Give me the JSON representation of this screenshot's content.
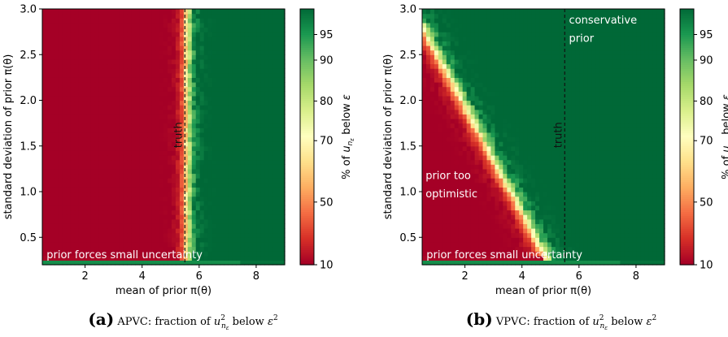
{
  "panels": [
    {
      "id": "a",
      "caption_label": "(a)",
      "caption_text": "APVC: fraction of u²_{n_ε} below ε²",
      "caption_parts": {
        "pre": "APVC: fraction of ",
        "var": "u",
        "sup": "2",
        "sub": "n",
        "subsub": "ε",
        "mid": " below ",
        "eps": "ε",
        "eps_sup": "2"
      }
    },
    {
      "id": "b",
      "caption_label": "(b)",
      "caption_text": "VPVC: fraction of u²_{n_ε} below ε²",
      "caption_parts": {
        "pre": "VPVC: fraction of ",
        "var": "u",
        "sup": "2",
        "sub": "n",
        "subsub": "ε",
        "mid": " below ",
        "eps": "ε",
        "eps_sup": "2"
      }
    }
  ],
  "chart_data": [
    {
      "type": "heatmap",
      "panel": "a",
      "xlabel": "mean of prior π(θ)",
      "ylabel": "standard deviation of prior π(θ)",
      "xlim": [
        0.5,
        9.0
      ],
      "ylim": [
        0.2,
        3.0
      ],
      "xticks": [
        2,
        4,
        6,
        8
      ],
      "yticks": [
        0.5,
        1.0,
        1.5,
        2.0,
        2.5,
        3.0
      ],
      "xtick_labels": [
        "2",
        "4",
        "6",
        "8"
      ],
      "ytick_labels": [
        "0.5",
        "1.0",
        "1.5",
        "2.0",
        "2.5",
        "3.0"
      ],
      "colorbar": {
        "label": "% of u_{n_ε} below ε",
        "label_parts": {
          "pre": "% of ",
          "var": "u",
          "sub": "n",
          "subsub": "ε",
          "post": " below ",
          "eps": "ε"
        },
        "range": [
          10,
          100
        ],
        "ticks": [
          10,
          50,
          70,
          80,
          90,
          95
        ],
        "tick_labels": [
          "10",
          "50",
          "70",
          "80",
          "90",
          "95"
        ],
        "colormap": "RdYlGn"
      },
      "truth_line_x": 5.5,
      "truth_label": "truth",
      "annotations": [
        {
          "text": "prior forces small uncertainty",
          "x": 0.65,
          "y": 0.27
        }
      ],
      "model": {
        "kind": "vertical_boundary",
        "boundary_mean": 5.5,
        "width": 0.35,
        "low_sigma_cut": 0.3
      }
    },
    {
      "type": "heatmap",
      "panel": "b",
      "xlabel": "mean of prior π(θ)",
      "ylabel": "standard deviation of prior π(θ)",
      "xlim": [
        0.5,
        9.0
      ],
      "ylim": [
        0.2,
        3.0
      ],
      "xticks": [
        2,
        4,
        6,
        8
      ],
      "yticks": [
        0.5,
        1.0,
        1.5,
        2.0,
        2.5,
        3.0
      ],
      "xtick_labels": [
        "2",
        "4",
        "6",
        "8"
      ],
      "ytick_labels": [
        "0.5",
        "1.0",
        "1.5",
        "2.0",
        "2.5",
        "3.0"
      ],
      "colorbar": {
        "label": "% of u_{n_ε} below ε",
        "label_parts": {
          "pre": "% of ",
          "var": "u",
          "sub": "n",
          "subsub": "ε",
          "post": " below ",
          "eps": "ε"
        },
        "range": [
          10,
          100
        ],
        "ticks": [
          10,
          50,
          70,
          80,
          90,
          95
        ],
        "tick_labels": [
          "10",
          "50",
          "70",
          "80",
          "90",
          "95"
        ],
        "colormap": "RdYlGn"
      },
      "truth_line_x": 5.5,
      "truth_label": "truth",
      "annotations": [
        {
          "text": "conservative",
          "x": 5.65,
          "y": 2.84
        },
        {
          "text": "prior",
          "x": 5.65,
          "y": 2.64
        },
        {
          "text": "prior too",
          "x": 0.62,
          "y": 1.14
        },
        {
          "text": "optimistic",
          "x": 0.62,
          "y": 0.94
        },
        {
          "text": "prior forces small uncertainty",
          "x": 0.65,
          "y": 0.27
        }
      ],
      "model": {
        "kind": "diagonal_boundary",
        "boundary_points": [
          [
            0.5,
            2.75
          ],
          [
            4.7,
            0.3
          ]
        ],
        "width": 0.28,
        "low_sigma_cut": 0.3
      }
    }
  ]
}
